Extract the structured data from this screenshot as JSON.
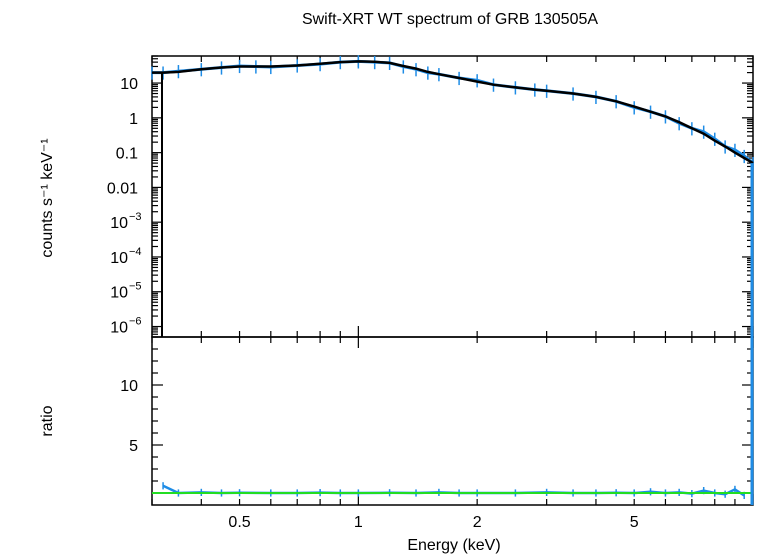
{
  "chart_data": [
    {
      "type": "line",
      "title": "Swift-XRT WT spectrum of GRB 130505A",
      "xlabel": "",
      "ylabel": "counts s⁻¹ keV⁻¹",
      "xscale": "log",
      "yscale": "log",
      "xlim": [
        0.3,
        10
      ],
      "ylim": [
        5e-07,
        60
      ],
      "y_ticks": [
        {
          "value": 10,
          "label": "10"
        },
        {
          "value": 1,
          "label": "1"
        },
        {
          "value": 0.1,
          "label": "0.1"
        },
        {
          "value": 0.01,
          "label": "0.01"
        },
        {
          "value": 0.001,
          "base": "10",
          "exp": "−3"
        },
        {
          "value": 0.0001,
          "base": "10",
          "exp": "−4"
        },
        {
          "value": 1e-05,
          "base": "10",
          "exp": "−5"
        },
        {
          "value": 1e-06,
          "base": "10",
          "exp": "−6"
        }
      ],
      "series": [
        {
          "color": "#1e8ce6",
          "style": "data-with-errorbars",
          "x": [
            0.3,
            0.32,
            0.35,
            0.4,
            0.45,
            0.5,
            0.55,
            0.6,
            0.7,
            0.8,
            0.9,
            1.0,
            1.1,
            1.2,
            1.3,
            1.4,
            1.5,
            1.6,
            1.8,
            2.0,
            2.2,
            2.5,
            2.8,
            3.0,
            3.5,
            4.0,
            4.5,
            5.0,
            5.5,
            6.0,
            6.5,
            7.0,
            7.5,
            8.0,
            8.5,
            9.0,
            9.5,
            10.0
          ],
          "y": [
            20,
            20,
            22,
            25,
            28,
            31,
            30,
            29,
            32,
            35,
            40,
            42,
            40,
            38,
            30,
            25,
            20,
            18,
            14,
            12,
            9,
            7.5,
            6.5,
            6.0,
            5.0,
            4.0,
            3.0,
            2.0,
            1.5,
            1.1,
            0.7,
            0.5,
            0.4,
            0.25,
            0.15,
            0.12,
            0.08,
            0.05
          ]
        },
        {
          "color": "#000000",
          "style": "model",
          "x": [
            0.3,
            0.32,
            0.35,
            0.4,
            0.45,
            0.5,
            0.55,
            0.6,
            0.7,
            0.8,
            0.9,
            1.0,
            1.1,
            1.2,
            1.3,
            1.4,
            1.5,
            1.6,
            1.8,
            2.0,
            2.2,
            2.5,
            2.8,
            3.0,
            3.5,
            4.0,
            4.5,
            5.0,
            5.5,
            6.0,
            6.5,
            7.0,
            7.5,
            8.0,
            8.5,
            9.0,
            9.5,
            10.0
          ],
          "y": [
            20,
            20,
            21,
            25,
            28,
            30,
            30,
            30,
            32,
            36,
            40,
            42,
            41,
            38,
            31,
            26,
            21,
            18,
            14,
            11,
            9,
            7.5,
            6.5,
            6.0,
            5.0,
            4.0,
            3.0,
            2.1,
            1.5,
            1.1,
            0.75,
            0.5,
            0.35,
            0.22,
            0.15,
            0.1,
            0.07,
            0.05
          ]
        }
      ]
    },
    {
      "type": "line",
      "title": "",
      "xlabel": "Energy (keV)",
      "ylabel": "ratio",
      "xscale": "log",
      "xlim": [
        0.3,
        10
      ],
      "ylim": [
        0,
        14
      ],
      "x_ticks": [
        {
          "value": 0.5,
          "label": "0.5"
        },
        {
          "value": 1,
          "label": "1"
        },
        {
          "value": 2,
          "label": "2"
        },
        {
          "value": 5,
          "label": "5"
        }
      ],
      "y_ticks": [
        {
          "value": 5,
          "label": "5"
        },
        {
          "value": 10,
          "label": "10"
        }
      ],
      "series": [
        {
          "color": "#1e8ce6",
          "style": "data-with-errorbars",
          "x": [
            0.32,
            0.35,
            0.4,
            0.45,
            0.5,
            0.6,
            0.7,
            0.8,
            0.9,
            1.0,
            1.2,
            1.4,
            1.6,
            1.8,
            2.0,
            2.5,
            3.0,
            3.5,
            4.0,
            4.5,
            5.0,
            5.5,
            6.0,
            6.5,
            7.0,
            7.5,
            8.0,
            8.5,
            9.0,
            9.5
          ],
          "y": [
            1.6,
            1.0,
            1.05,
            1.0,
            1.02,
            1.0,
            1.0,
            1.03,
            1.0,
            1.0,
            1.02,
            1.0,
            1.05,
            1.0,
            1.0,
            1.0,
            1.05,
            1.0,
            1.0,
            1.02,
            1.0,
            1.1,
            1.0,
            1.05,
            0.95,
            1.2,
            1.0,
            0.9,
            1.3,
            0.8
          ]
        },
        {
          "color": "#22dd22",
          "style": "unity-line",
          "x": [
            0.3,
            10
          ],
          "y": [
            1,
            1
          ]
        }
      ]
    }
  ]
}
